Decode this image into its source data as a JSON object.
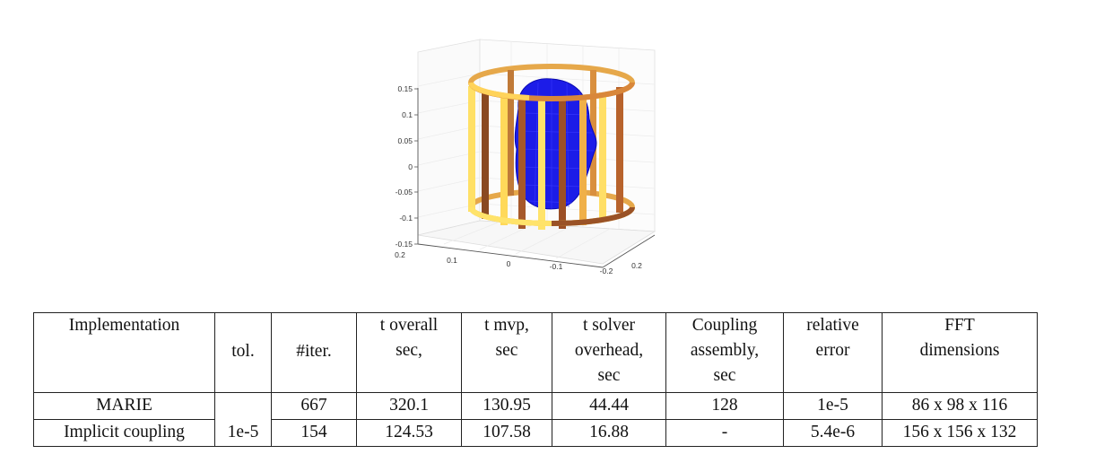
{
  "figure": {
    "z_ticks": [
      "0.15",
      "0.1",
      "0.05",
      "0",
      "-0.05",
      "-0.1",
      "-0.15"
    ],
    "x_ticks": [
      "0.2",
      "0.1",
      "0",
      "-0.1",
      "-0.2"
    ],
    "y_ticks": [
      "0.2"
    ],
    "colors": {
      "head": "#1a1ae6",
      "coil_light": "#ffe36a",
      "coil_mid": "#e69a3a",
      "coil_dark": "#8a4a22",
      "grid": "#e6e6e6",
      "axis": "#555555"
    }
  },
  "table": {
    "headers": {
      "implementation": "Implementation",
      "tol": "tol.",
      "iter": "#iter.",
      "t_overall": [
        "t overall",
        "sec,"
      ],
      "t_mvp": [
        "t mvp,",
        "sec"
      ],
      "t_solver": [
        "t solver",
        "overhead,",
        "sec"
      ],
      "coupling": [
        "Coupling",
        "assembly,",
        "sec"
      ],
      "relative_error": [
        "relative",
        "error"
      ],
      "fft": [
        "FFT",
        "dimensions"
      ]
    },
    "rows": [
      {
        "implementation": "MARIE",
        "tol": "",
        "iter": "667",
        "t_overall": "320.1",
        "t_mvp": "130.95",
        "t_solver": "44.44",
        "coupling": "128",
        "relative_error": "1e-5",
        "fft": "86 x 98 x 116"
      },
      {
        "implementation": "Implicit coupling",
        "tol": "1e-5",
        "iter": "154",
        "t_overall": "124.53",
        "t_mvp": "107.58",
        "t_solver": "16.88",
        "coupling": "-",
        "relative_error": "5.4e-6",
        "fft": "156 x 156 x 132"
      }
    ]
  }
}
